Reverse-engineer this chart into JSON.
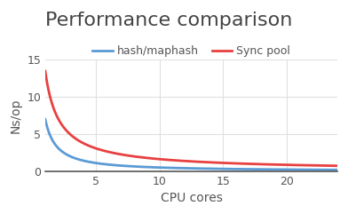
{
  "title": "Performance comparison",
  "xlabel": "CPU cores",
  "ylabel": "Ns/op",
  "xlim": [
    1,
    24
  ],
  "ylim": [
    0,
    15
  ],
  "xticks": [
    5,
    10,
    15,
    20
  ],
  "yticks": [
    0,
    5,
    10,
    15
  ],
  "legend": [
    {
      "label": "hash/maphash",
      "color": "#5b9bd5"
    },
    {
      "label": "Sync pool",
      "color": "#e84040"
    }
  ],
  "hash_maphash": {
    "a": 7.0,
    "b": 1.15
  },
  "sync_pool": {
    "a": 13.5,
    "b": 0.92
  },
  "background_color": "#ffffff",
  "grid_color": "#e0e0e0",
  "title_fontsize": 16,
  "label_fontsize": 10,
  "tick_fontsize": 9,
  "line_width": 2.0
}
